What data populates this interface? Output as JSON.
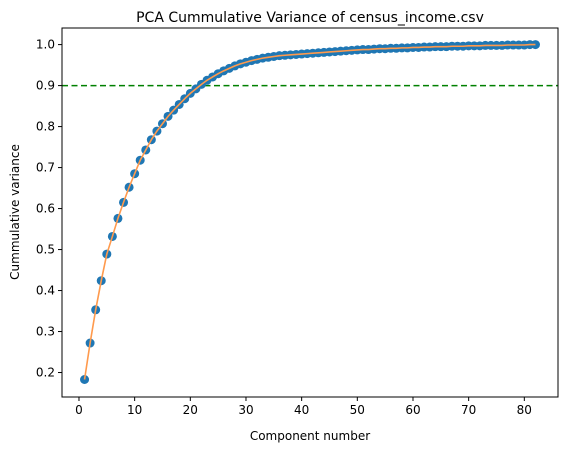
{
  "chart_data": {
    "type": "scatter",
    "title": "PCA Cummulative Variance of census_income.csv",
    "xlabel": "Component number",
    "ylabel": "Cummulative variance",
    "xlim": [
      -3.05,
      86.05
    ],
    "ylim": [
      0.1403,
      1.0405
    ],
    "xticks": [
      0,
      10,
      20,
      30,
      40,
      50,
      60,
      70,
      80
    ],
    "yticks": [
      0.2,
      0.3,
      0.4,
      0.5,
      0.6,
      0.7,
      0.8,
      0.9,
      1.0
    ],
    "grid": false,
    "threshold": 0.9,
    "colors": {
      "points": "#1f77b4",
      "line": "#ff9a4d",
      "threshold": "#008000"
    },
    "x": [
      1,
      2,
      3,
      4,
      5,
      6,
      7,
      8,
      9,
      10,
      11,
      12,
      13,
      14,
      15,
      16,
      17,
      18,
      19,
      20,
      21,
      22,
      23,
      24,
      25,
      26,
      27,
      28,
      29,
      30,
      31,
      32,
      33,
      34,
      35,
      36,
      37,
      38,
      39,
      40,
      41,
      42,
      43,
      44,
      45,
      46,
      47,
      48,
      49,
      50,
      51,
      52,
      53,
      54,
      55,
      56,
      57,
      58,
      59,
      60,
      61,
      62,
      63,
      64,
      65,
      66,
      67,
      68,
      69,
      70,
      71,
      72,
      73,
      74,
      75,
      76,
      77,
      78,
      79,
      80,
      81,
      82
    ],
    "y": [
      0.183,
      0.272,
      0.353,
      0.424,
      0.489,
      0.532,
      0.576,
      0.615,
      0.652,
      0.685,
      0.718,
      0.743,
      0.768,
      0.789,
      0.807,
      0.825,
      0.84,
      0.854,
      0.868,
      0.881,
      0.892,
      0.903,
      0.913,
      0.921,
      0.929,
      0.936,
      0.942,
      0.948,
      0.953,
      0.957,
      0.961,
      0.964,
      0.967,
      0.969,
      0.971,
      0.973,
      0.974,
      0.975,
      0.976,
      0.977,
      0.978,
      0.979,
      0.98,
      0.981,
      0.982,
      0.983,
      0.984,
      0.985,
      0.986,
      0.987,
      0.988,
      0.988,
      0.989,
      0.99,
      0.99,
      0.991,
      0.991,
      0.992,
      0.992,
      0.993,
      0.993,
      0.994,
      0.994,
      0.995,
      0.995,
      0.995,
      0.996,
      0.996,
      0.996,
      0.997,
      0.997,
      0.997,
      0.998,
      0.998,
      0.998,
      0.998,
      0.999,
      0.999,
      0.999,
      0.999,
      1.0,
      1.0
    ]
  }
}
